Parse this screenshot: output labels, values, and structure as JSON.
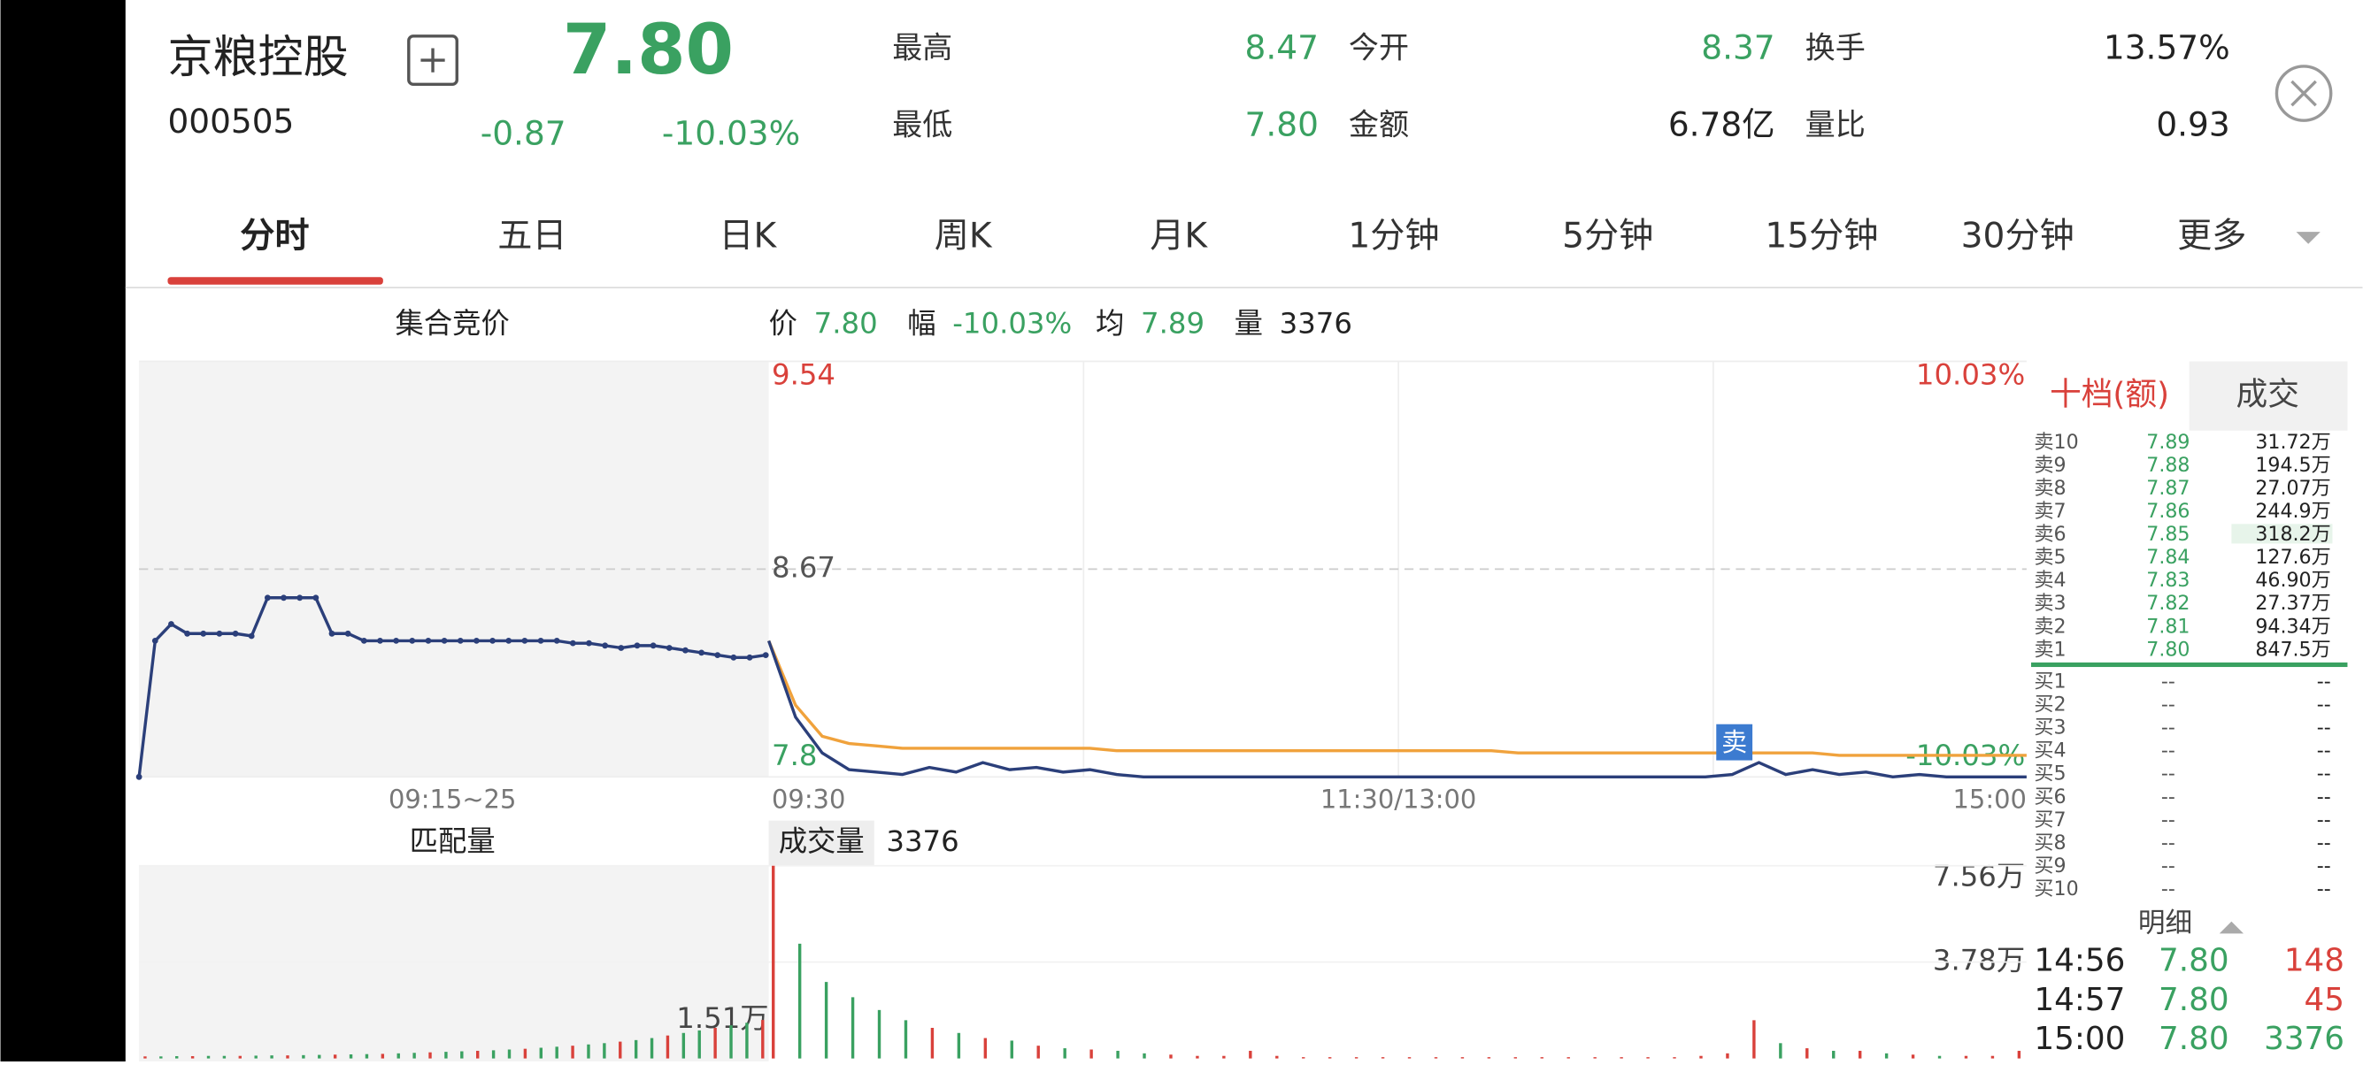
{
  "header": {
    "name": "京粮控股",
    "code": "000505",
    "price": "7.80",
    "change": "-0.87",
    "change_pct": "-10.03%",
    "stats": [
      {
        "label": "最高",
        "value": "8.47"
      },
      {
        "label": "今开",
        "value": "8.37"
      },
      {
        "label": "换手",
        "value": "13.57%"
      },
      {
        "label": "最低",
        "value": "7.80"
      },
      {
        "label": "金额",
        "value": "6.78亿"
      },
      {
        "label": "量比",
        "value": "0.93"
      }
    ]
  },
  "tabs": [
    "分时",
    "五日",
    "日K",
    "周K",
    "月K",
    "1分钟",
    "5分钟",
    "15分钟",
    "30分钟",
    "更多"
  ],
  "chart": {
    "auction_title": "集合竞价",
    "info": [
      {
        "label": "价",
        "value": "7.80"
      },
      {
        "label": "幅",
        "value": "-10.03%"
      },
      {
        "label": "均",
        "value": "7.89"
      },
      {
        "label": "量",
        "value": "3376"
      }
    ],
    "ylim": [
      7.8,
      9.54
    ],
    "yticks": [
      9.54,
      8.67,
      7.8
    ],
    "pct_top": "10.03%",
    "pct_bottom": "-10.03%",
    "time_labels": [
      "09:15~25",
      "09:30",
      "11:30/13:00",
      "15:00"
    ],
    "auction_price": [
      7.8,
      8.37,
      8.44,
      8.4,
      8.4,
      8.4,
      8.4,
      8.39,
      8.55,
      8.55,
      8.55,
      8.55,
      8.4,
      8.4,
      8.37,
      8.37,
      8.37,
      8.37,
      8.37,
      8.37,
      8.37,
      8.37,
      8.37,
      8.37,
      8.37,
      8.37,
      8.37,
      8.36,
      8.36,
      8.35,
      8.34,
      8.35,
      8.35,
      8.34,
      8.33,
      8.32,
      8.31,
      8.3,
      8.3,
      8.31
    ],
    "price": [
      8.37,
      8.05,
      7.9,
      7.83,
      7.82,
      7.81,
      7.84,
      7.82,
      7.86,
      7.83,
      7.84,
      7.82,
      7.83,
      7.81,
      7.8,
      7.8,
      7.8,
      7.8,
      7.8,
      7.8,
      7.8,
      7.8,
      7.8,
      7.8,
      7.8,
      7.8,
      7.8,
      7.8,
      7.8,
      7.8,
      7.8,
      7.8,
      7.8,
      7.8,
      7.8,
      7.8,
      7.81,
      7.86,
      7.81,
      7.83,
      7.81,
      7.82,
      7.8,
      7.81,
      7.8,
      7.8,
      7.8,
      7.8
    ],
    "avg": [
      8.37,
      8.1,
      7.97,
      7.94,
      7.93,
      7.92,
      7.92,
      7.92,
      7.92,
      7.92,
      7.92,
      7.92,
      7.92,
      7.91,
      7.91,
      7.91,
      7.91,
      7.91,
      7.91,
      7.91,
      7.91,
      7.91,
      7.91,
      7.91,
      7.91,
      7.91,
      7.91,
      7.91,
      7.9,
      7.9,
      7.9,
      7.9,
      7.9,
      7.9,
      7.9,
      7.9,
      7.9,
      7.9,
      7.9,
      7.9,
      7.89,
      7.89,
      7.89,
      7.89,
      7.89,
      7.89,
      7.89,
      7.89
    ],
    "sell_marker": "卖",
    "volume_title": "匹配量",
    "turnover_title": "成交量",
    "turnover": "3376",
    "vol_lim": [
      0,
      7.56
    ],
    "vol_ticks": [
      {
        "value": 7.56,
        "label": "7.56万"
      },
      {
        "value": 3.78,
        "label": "3.78万"
      },
      {
        "value": 1.51,
        "label": "1.51万"
      }
    ],
    "auction_volume": [
      0.08,
      0.08,
      0.09,
      0.09,
      0.1,
      0.1,
      0.1,
      0.11,
      0.12,
      0.12,
      0.13,
      0.14,
      0.15,
      0.16,
      0.17,
      0.18,
      0.2,
      0.22,
      0.24,
      0.26,
      0.28,
      0.3,
      0.32,
      0.35,
      0.38,
      0.42,
      0.46,
      0.5,
      0.55,
      0.6,
      0.66,
      0.72,
      0.8,
      0.9,
      1.0,
      1.1,
      1.2,
      1.3,
      1.4,
      1.51
    ],
    "volume": [
      7.56,
      4.5,
      3.0,
      2.4,
      1.9,
      1.5,
      1.2,
      1.0,
      0.8,
      0.7,
      0.5,
      0.4,
      0.35,
      0.3,
      0.2,
      0.15,
      0.1,
      0.1,
      0.3,
      0.1,
      0.05,
      0.05,
      0.05,
      0.05,
      0.05,
      0.05,
      0.05,
      0.05,
      0.05,
      0.05,
      0.05,
      0.05,
      0.05,
      0.05,
      0.05,
      0.1,
      0.2,
      1.5,
      0.6,
      0.4,
      0.3,
      0.3,
      0.2,
      0.15,
      0.1,
      0.1,
      0.1,
      0.3
    ]
  },
  "orderbook": {
    "tabs": [
      "十档(额)",
      "成交"
    ],
    "sell": [
      [
        "卖10",
        "7.89",
        "31.72万"
      ],
      [
        "卖9",
        "7.88",
        "194.5万"
      ],
      [
        "卖8",
        "7.87",
        "27.07万"
      ],
      [
        "卖7",
        "7.86",
        "244.9万"
      ],
      [
        "卖6",
        "7.85",
        "318.2万"
      ],
      [
        "卖5",
        "7.84",
        "127.6万"
      ],
      [
        "卖4",
        "7.83",
        "46.90万"
      ],
      [
        "卖3",
        "7.82",
        "27.37万"
      ],
      [
        "卖2",
        "7.81",
        "94.34万"
      ],
      [
        "卖1",
        "7.80",
        "847.5万"
      ]
    ],
    "buy": [
      [
        "买1",
        "--",
        "--"
      ],
      [
        "买2",
        "--",
        "--"
      ],
      [
        "买3",
        "--",
        "--"
      ],
      [
        "买4",
        "--",
        "--"
      ],
      [
        "买5",
        "--",
        "--"
      ],
      [
        "买6",
        "--",
        "--"
      ],
      [
        "买7",
        "--",
        "--"
      ],
      [
        "买8",
        "--",
        "--"
      ],
      [
        "买9",
        "--",
        "--"
      ],
      [
        "买10",
        "--",
        "--"
      ]
    ],
    "detail_title": "明细",
    "trades": [
      [
        "14:56",
        "7.80",
        "148"
      ],
      [
        "14:57",
        "7.80",
        "45"
      ],
      [
        "15:00",
        "7.80",
        "3376"
      ]
    ]
  }
}
